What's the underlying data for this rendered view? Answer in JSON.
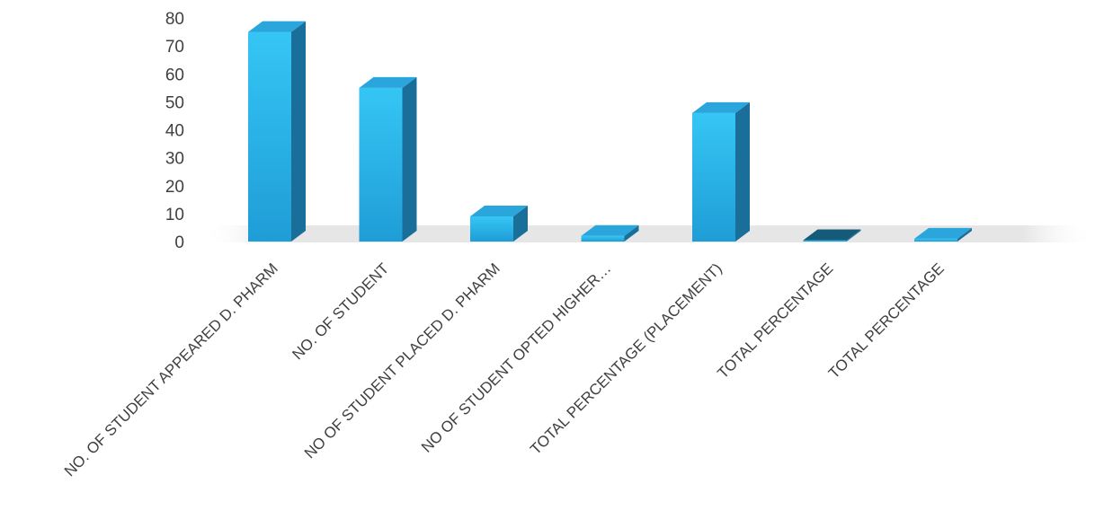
{
  "chart_data": {
    "type": "bar",
    "title": "",
    "xlabel": "",
    "ylabel": "",
    "ylim": [
      0,
      80
    ],
    "yticks": [
      0,
      10,
      20,
      30,
      40,
      50,
      60,
      70,
      80
    ],
    "categories": [
      "NO. OF STUDENT APPEARED D. PHARM",
      "NO. OF STUDENT",
      "NO OF STUDENT PLACED D. PHARM",
      "NO OF STUDENT OPTED HIGHER…",
      "TOTAL PERCENTAGE (PLACEMENT)",
      "TOTAL PERCENTAGE",
      "TOTAL PERCENTAGE"
    ],
    "values": [
      75,
      55,
      9,
      2,
      46,
      0.5,
      1
    ],
    "grid": false,
    "legend": "none",
    "style": "3d-column",
    "colors": {
      "front_top": "#35c6f5",
      "front_bottom": "#1f9dd6",
      "side": "#1a6f9a",
      "top": "#2aa6dc",
      "dark_top": "#155a78",
      "floor": "#e6e6e6"
    }
  }
}
